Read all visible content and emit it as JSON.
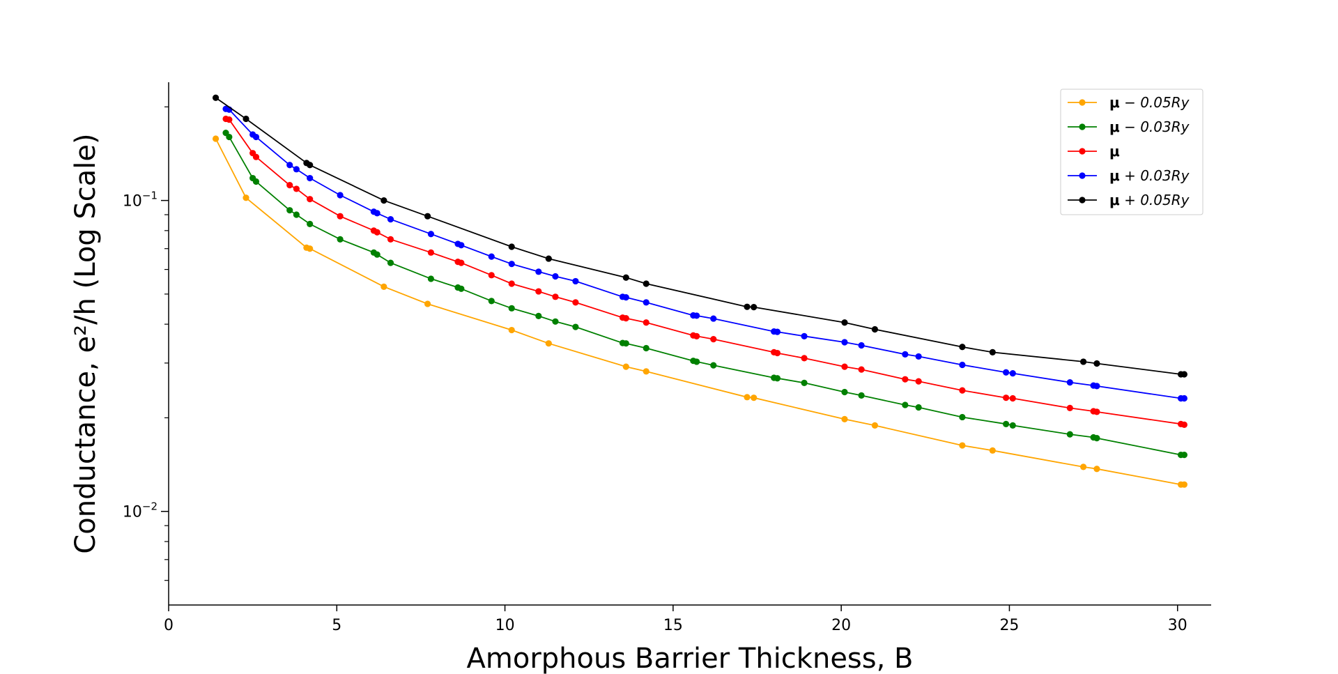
{
  "chart_data": {
    "type": "line",
    "title": "",
    "xlabel": "Amorphous Barrier Thickness, B",
    "ylabel": "Conductance, e²/h (Log Scale)",
    "yscale": "log",
    "xlim": [
      0,
      31
    ],
    "ylim": [
      0.005,
      0.24
    ],
    "xticks": [
      0,
      5,
      10,
      15,
      20,
      25,
      30
    ],
    "yticks_major": [
      0.01,
      0.1
    ],
    "yticks_major_labels": [
      {
        "base": "10",
        "exp": "−2"
      },
      {
        "base": "10",
        "exp": "−1"
      }
    ],
    "yticks_minor": [
      0.006,
      0.007,
      0.008,
      0.009,
      0.02,
      0.03,
      0.04,
      0.05,
      0.06,
      0.07,
      0.08,
      0.09,
      0.2
    ],
    "grid": false,
    "legend_position": "top-right",
    "series": [
      {
        "name": "μ − 0.05Ry",
        "label_main": "μ",
        "label_rest": " − 0.05Ry",
        "color": "#ffa500",
        "x": [
          1.4,
          2.3,
          4.1,
          4.2,
          6.4,
          7.7,
          10.2,
          11.3,
          13.6,
          14.2,
          17.2,
          17.4,
          20.1,
          21.0,
          23.6,
          24.5,
          27.2,
          27.6,
          30.1,
          30.2
        ],
        "y": [
          0.158,
          0.102,
          0.0705,
          0.07,
          0.0528,
          0.0465,
          0.0383,
          0.0347,
          0.0292,
          0.0282,
          0.0233,
          0.0232,
          0.0198,
          0.0189,
          0.0163,
          0.0157,
          0.0139,
          0.0137,
          0.0122,
          0.0122
        ]
      },
      {
        "name": "μ − 0.03Ry",
        "label_main": "μ",
        "label_rest": " − 0.03Ry",
        "color": "#008000",
        "x": [
          1.7,
          1.8,
          2.5,
          2.6,
          3.6,
          3.8,
          4.2,
          5.1,
          6.1,
          6.2,
          6.6,
          7.8,
          8.6,
          8.7,
          9.6,
          10.2,
          11.0,
          11.5,
          12.1,
          13.5,
          13.6,
          14.2,
          15.6,
          15.7,
          16.2,
          18.0,
          18.1,
          18.9,
          20.1,
          20.6,
          21.9,
          22.3,
          23.6,
          24.9,
          25.1,
          26.8,
          27.5,
          27.6,
          30.1,
          30.2
        ],
        "y": [
          0.165,
          0.16,
          0.118,
          0.115,
          0.093,
          0.09,
          0.084,
          0.075,
          0.068,
          0.067,
          0.063,
          0.056,
          0.0525,
          0.052,
          0.0475,
          0.045,
          0.0425,
          0.0408,
          0.0392,
          0.0348,
          0.0347,
          0.0335,
          0.0305,
          0.0303,
          0.0295,
          0.0269,
          0.0268,
          0.0259,
          0.0242,
          0.0236,
          0.022,
          0.0216,
          0.0201,
          0.0191,
          0.0189,
          0.0177,
          0.0173,
          0.0172,
          0.0152,
          0.0152
        ]
      },
      {
        "name": "μ",
        "label_main": "μ",
        "label_rest": "",
        "color": "#ff0000",
        "x": [
          1.7,
          1.8,
          2.5,
          2.6,
          3.6,
          3.8,
          4.2,
          5.1,
          6.1,
          6.2,
          6.6,
          7.8,
          8.6,
          8.7,
          9.6,
          10.2,
          11.0,
          11.5,
          12.1,
          13.5,
          13.6,
          14.2,
          15.6,
          15.7,
          16.2,
          18.0,
          18.1,
          18.9,
          20.1,
          20.6,
          21.9,
          22.3,
          23.6,
          24.9,
          25.1,
          26.8,
          27.5,
          27.6,
          30.1,
          30.2
        ],
        "y": [
          0.183,
          0.182,
          0.142,
          0.138,
          0.112,
          0.109,
          0.101,
          0.089,
          0.08,
          0.079,
          0.075,
          0.068,
          0.0635,
          0.063,
          0.0575,
          0.054,
          0.051,
          0.049,
          0.047,
          0.042,
          0.0418,
          0.0405,
          0.0368,
          0.0366,
          0.0358,
          0.0325,
          0.0323,
          0.0311,
          0.0292,
          0.0286,
          0.0266,
          0.0262,
          0.0245,
          0.0232,
          0.0231,
          0.0215,
          0.021,
          0.0209,
          0.0191,
          0.019
        ]
      },
      {
        "name": "μ + 0.03Ry",
        "label_main": "μ",
        "label_rest": " + 0.03Ry",
        "color": "#0000ff",
        "x": [
          1.7,
          1.8,
          2.5,
          2.6,
          3.6,
          3.8,
          4.2,
          5.1,
          6.1,
          6.2,
          6.6,
          7.8,
          8.6,
          8.7,
          9.6,
          10.2,
          11.0,
          11.5,
          12.1,
          13.5,
          13.6,
          14.2,
          15.6,
          15.7,
          16.2,
          18.0,
          18.1,
          18.9,
          20.1,
          20.6,
          21.9,
          22.3,
          23.6,
          24.9,
          25.1,
          26.8,
          27.5,
          27.6,
          30.1,
          30.2
        ],
        "y": [
          0.197,
          0.196,
          0.163,
          0.16,
          0.13,
          0.126,
          0.118,
          0.104,
          0.092,
          0.091,
          0.087,
          0.078,
          0.0725,
          0.0718,
          0.066,
          0.0625,
          0.059,
          0.057,
          0.055,
          0.049,
          0.0488,
          0.047,
          0.0427,
          0.0426,
          0.0417,
          0.0379,
          0.0378,
          0.0366,
          0.035,
          0.0342,
          0.032,
          0.0315,
          0.0296,
          0.028,
          0.0278,
          0.026,
          0.0254,
          0.0253,
          0.0231,
          0.0231
        ]
      },
      {
        "name": "μ + 0.05Ry",
        "label_main": "μ",
        "label_rest": " + 0.05Ry",
        "color": "#000000",
        "x": [
          1.4,
          2.3,
          4.1,
          4.2,
          6.4,
          7.7,
          10.2,
          11.3,
          13.6,
          14.2,
          17.2,
          17.4,
          20.1,
          21.0,
          23.6,
          24.5,
          27.2,
          27.6,
          30.1,
          30.2
        ],
        "y": [
          0.214,
          0.183,
          0.132,
          0.13,
          0.1,
          0.089,
          0.071,
          0.065,
          0.0565,
          0.054,
          0.0455,
          0.0454,
          0.0405,
          0.0385,
          0.0338,
          0.0325,
          0.0303,
          0.0299,
          0.0276,
          0.0276
        ]
      }
    ]
  }
}
